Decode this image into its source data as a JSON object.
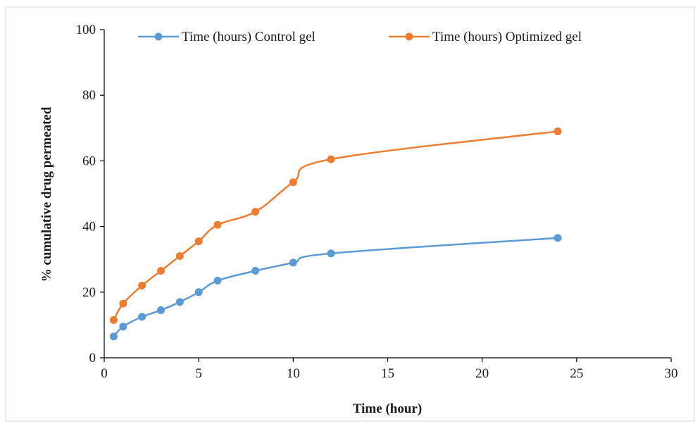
{
  "chart_data": {
    "type": "line",
    "xlabel": "Time (hour)",
    "ylabel": "% cumulative  drug  permeated",
    "xlim": [
      0,
      30
    ],
    "ylim": [
      0,
      100
    ],
    "xticks": [
      0,
      5,
      10,
      15,
      20,
      25,
      30
    ],
    "yticks": [
      0,
      20,
      40,
      60,
      80,
      100
    ],
    "grid": false,
    "legend_position": "top",
    "x": [
      0.5,
      1,
      2,
      3,
      4,
      5,
      6,
      8,
      10,
      12,
      24
    ],
    "series": [
      {
        "name": "Time (hours) Control gel",
        "color": "#5b9bd5",
        "values": [
          6.5,
          9.5,
          12.5,
          14.5,
          17.0,
          20.0,
          23.5,
          26.5,
          29.0,
          31.8,
          36.5
        ]
      },
      {
        "name": "Time (hours) Optimized gel",
        "color": "#ed7d31",
        "values": [
          11.5,
          16.5,
          22.0,
          26.5,
          31.0,
          35.5,
          40.5,
          44.5,
          53.5,
          60.5,
          69.0
        ]
      }
    ]
  }
}
